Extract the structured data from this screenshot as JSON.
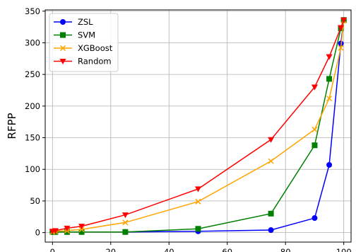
{
  "chart_data": {
    "type": "line",
    "title": "",
    "xlabel": "",
    "ylabel": "RFPP",
    "xlim": [
      -2.5,
      102.5
    ],
    "ylim": [
      -15,
      352
    ],
    "x_ticks": [
      0,
      20,
      40,
      60,
      80,
      100
    ],
    "y_ticks": [
      0,
      50,
      100,
      150,
      200,
      250,
      300,
      350
    ],
    "grid": true,
    "legend_position": "top-left",
    "series": [
      {
        "name": "ZSL",
        "color": "#0000ff",
        "marker": "circle",
        "x": [
          0,
          1,
          5,
          10,
          25,
          50,
          75,
          90,
          95,
          99,
          100
        ],
        "y": [
          1,
          1,
          1,
          1,
          1,
          2,
          4,
          23,
          107,
          299,
          336
        ]
      },
      {
        "name": "SVM",
        "color": "#008000",
        "marker": "square",
        "x": [
          0,
          1,
          5,
          10,
          25,
          50,
          75,
          90,
          95,
          99,
          100
        ],
        "y": [
          1,
          1,
          1,
          1,
          1,
          6,
          30,
          138,
          243,
          323,
          336
        ]
      },
      {
        "name": "XGBoost",
        "color": "#ffa500",
        "marker": "x",
        "x": [
          0,
          1,
          5,
          10,
          25,
          50,
          75,
          90,
          95,
          99,
          100
        ],
        "y": [
          1,
          2,
          3,
          5,
          16,
          49,
          113,
          163,
          212,
          292,
          335
        ]
      },
      {
        "name": "Random",
        "color": "#ff0000",
        "marker": "triangle-down",
        "x": [
          0,
          1,
          5,
          10,
          25,
          50,
          75,
          90,
          95,
          99,
          100
        ],
        "y": [
          2,
          3,
          7,
          10,
          28,
          69,
          147,
          230,
          278,
          324,
          336
        ]
      }
    ]
  }
}
